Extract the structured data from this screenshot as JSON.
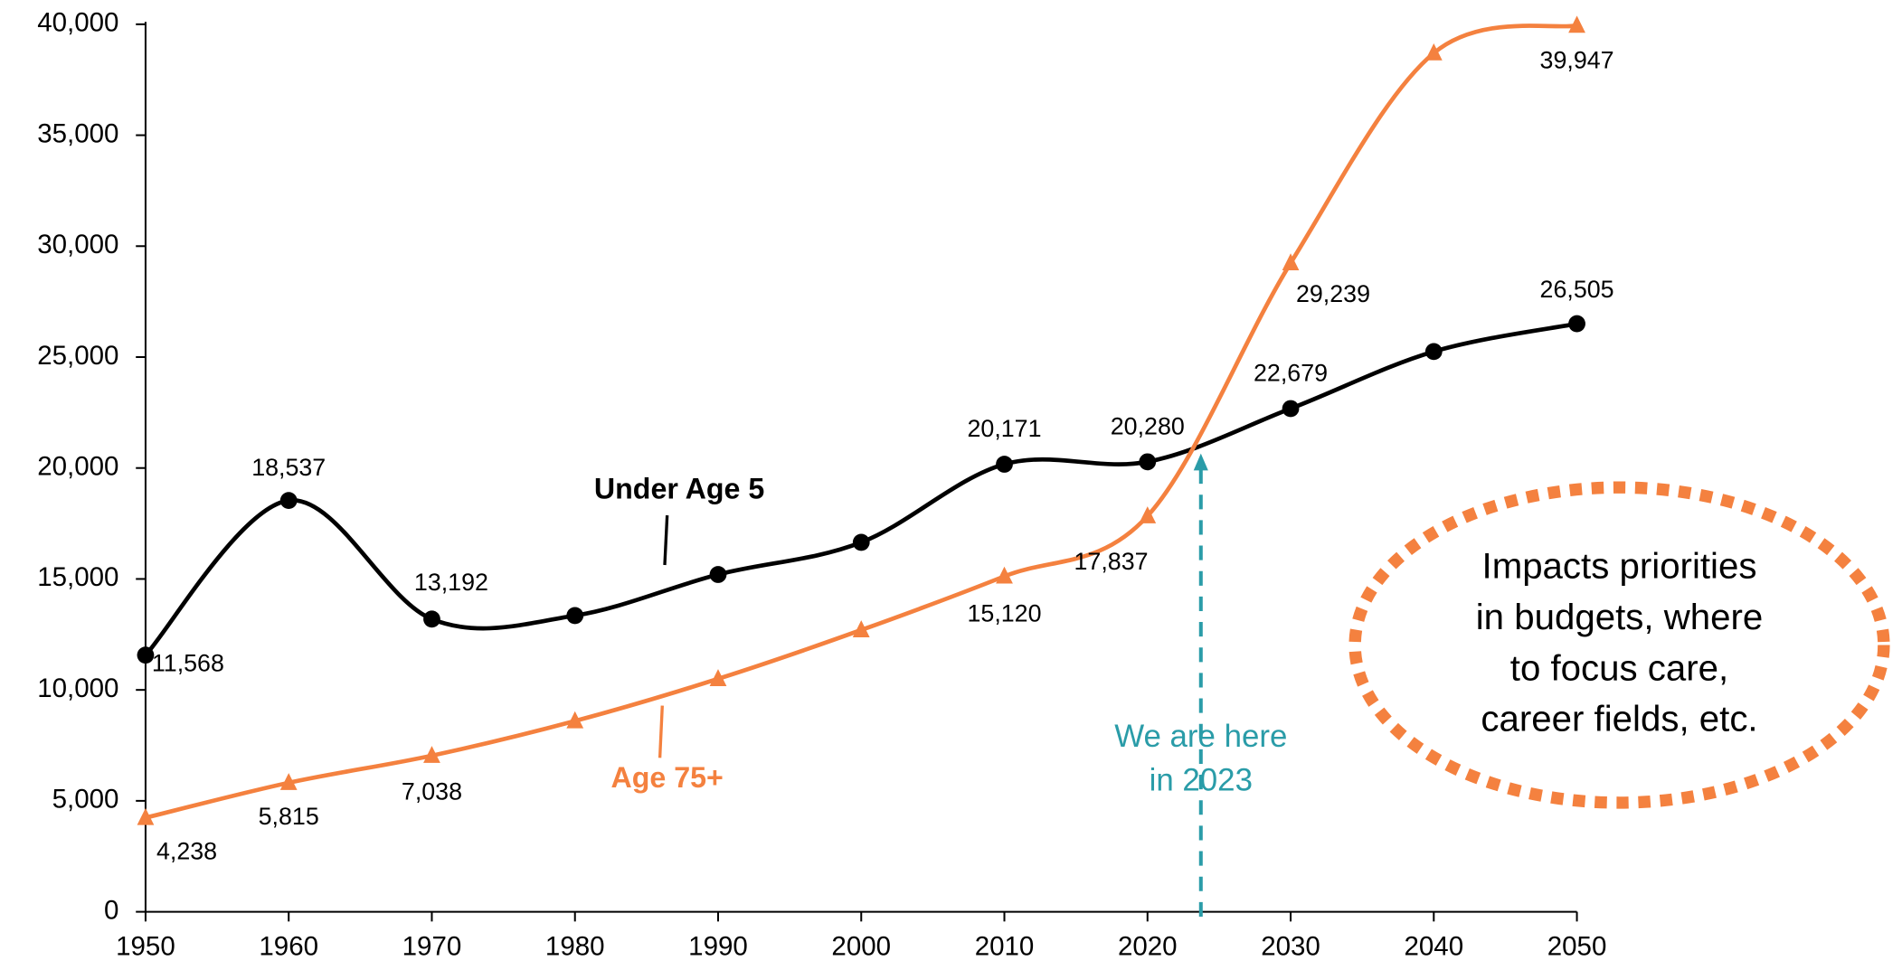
{
  "chart_data": {
    "type": "line",
    "x": [
      1950,
      1960,
      1970,
      1980,
      1990,
      2000,
      2010,
      2020,
      2030,
      2040,
      2050
    ],
    "series": [
      {
        "name": "Under Age 5",
        "color": "#000000",
        "marker": "circle",
        "values": [
          11568,
          18537,
          13192,
          13350,
          15200,
          16650,
          20171,
          20280,
          22679,
          25250,
          26505
        ],
        "value_labels": [
          "11,568",
          "18,537",
          "13,192",
          null,
          null,
          null,
          "20,171",
          "20,280",
          "22,679",
          null,
          "26,505"
        ]
      },
      {
        "name": "Age 75+",
        "color": "#f4813f",
        "marker": "triangle",
        "values": [
          4238,
          5815,
          7038,
          8600,
          10500,
          12700,
          15120,
          17837,
          29239,
          38700,
          39947
        ],
        "value_labels": [
          "4,238",
          "5,815",
          "7,038",
          null,
          null,
          null,
          "15,120",
          "17,837",
          "29,239",
          null,
          "39,947"
        ]
      }
    ],
    "xlim": [
      1950,
      2050
    ],
    "xticks": [
      1950,
      1960,
      1970,
      1980,
      1990,
      2000,
      2010,
      2020,
      2030,
      2040,
      2050
    ],
    "ylim": [
      0,
      40000
    ],
    "yticks": [
      0,
      {
        "value": 5000,
        "label": "5,000"
      },
      {
        "value": 10000,
        "label": "10,000"
      },
      {
        "value": 15000,
        "label": "15,000"
      },
      {
        "value": 20000,
        "label": "20,000"
      },
      {
        "value": 25000,
        "label": "25,000"
      },
      {
        "value": 30000,
        "label": "30,000"
      },
      {
        "value": 35000,
        "label": "35,000"
      },
      {
        "value": 40000,
        "label": "40,000"
      }
    ],
    "grid": false,
    "here_note": [
      "We are here",
      "in 2023"
    ],
    "impact_note": [
      "Impacts priorities",
      "in budgets, where",
      "to focus care,",
      "career fields, etc."
    ]
  }
}
